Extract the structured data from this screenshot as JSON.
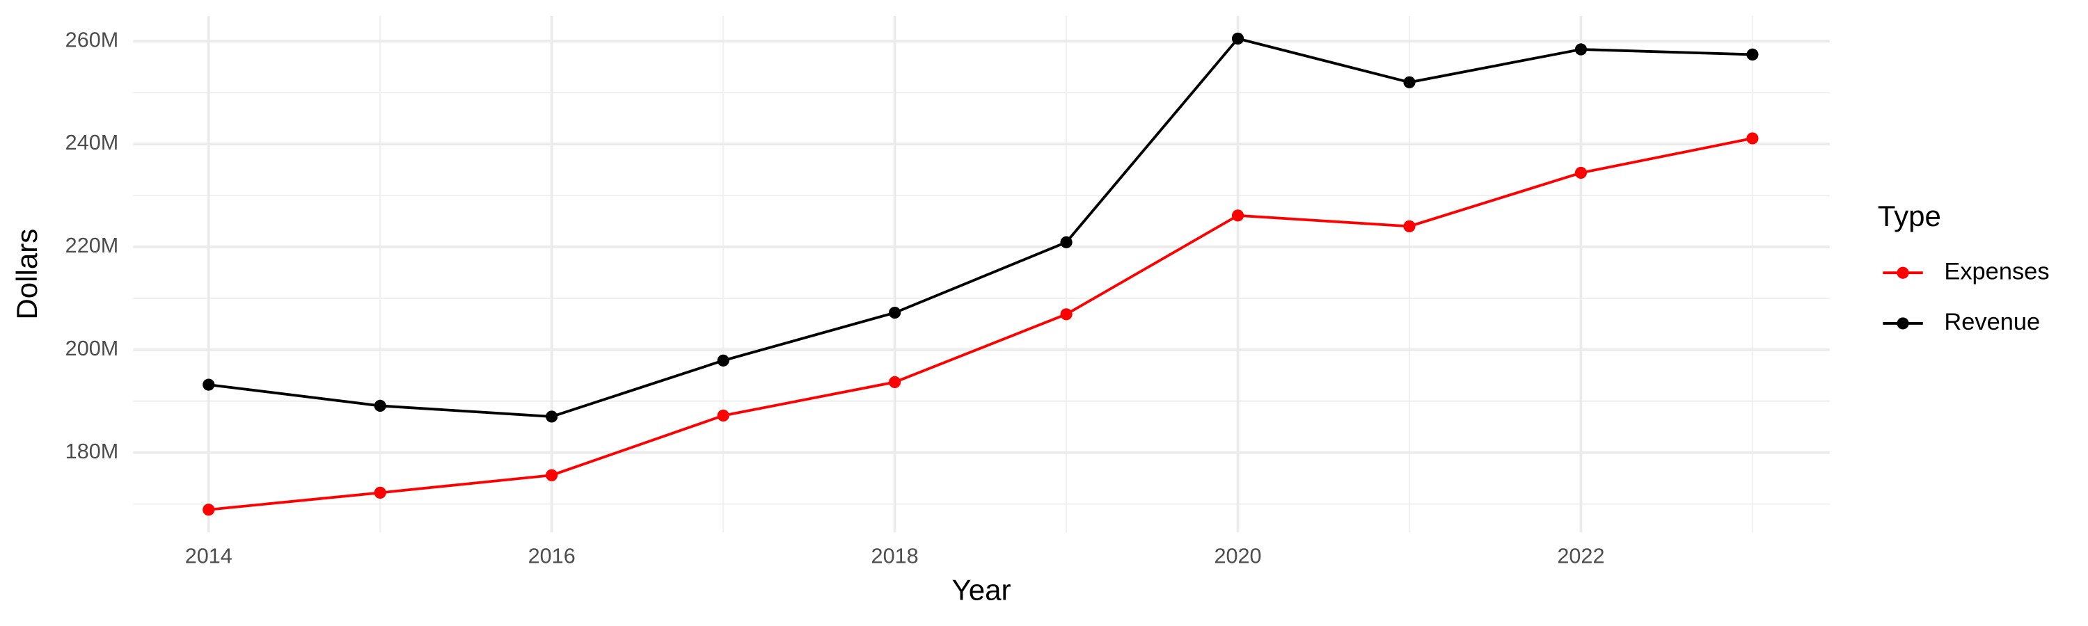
{
  "chart_data": {
    "type": "line",
    "x_label": "Year",
    "y_label": "Dollars",
    "legend_title": "Type",
    "x": [
      2014,
      2015,
      2016,
      2017,
      2018,
      2019,
      2020,
      2021,
      2022,
      2023
    ],
    "series": [
      {
        "name": "Expenses",
        "color": "#ff0000",
        "values": [
          168900000,
          172200000,
          175600000,
          187200000,
          193700000,
          206900000,
          226100000,
          224000000,
          234400000,
          241100000
        ]
      },
      {
        "name": "Revenue",
        "color": "#000000",
        "values": [
          193200000,
          189100000,
          187000000,
          197900000,
          207200000,
          220900000,
          260500000,
          252000000,
          258400000,
          257400000
        ]
      }
    ],
    "xlim": [
      2013.56,
      2023.45
    ],
    "xticks": [
      2014,
      2016,
      2018,
      2020,
      2022
    ],
    "ylim": [
      164500000,
      264900000
    ],
    "yticks": [
      {
        "value": 180000000,
        "label": "180M"
      },
      {
        "value": 200000000,
        "label": "200M"
      },
      {
        "value": 220000000,
        "label": "220M"
      },
      {
        "value": 240000000,
        "label": "240M"
      },
      {
        "value": 260000000,
        "label": "260M"
      }
    ],
    "grid": true,
    "legend": "right"
  }
}
